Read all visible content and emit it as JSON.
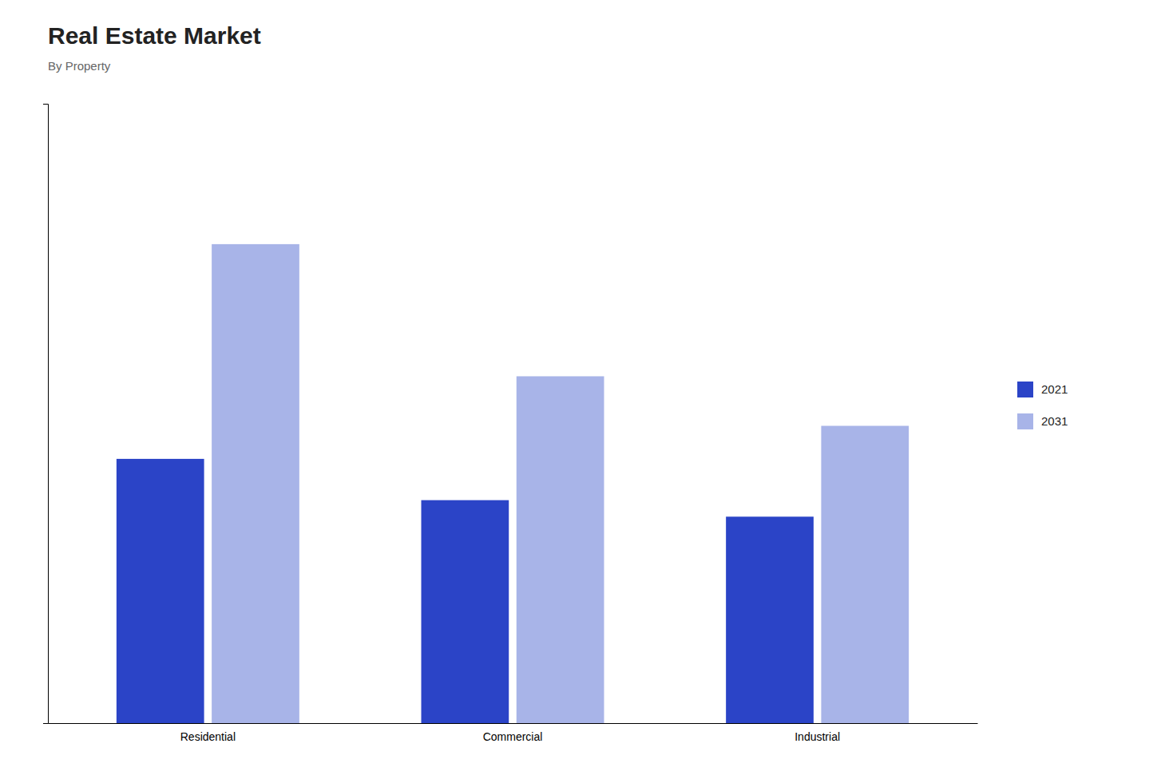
{
  "chart_data": {
    "type": "bar",
    "title": "Real Estate Market",
    "subtitle": "By Property",
    "categories": [
      "Residential",
      "Commercial",
      "Industrial"
    ],
    "series": [
      {
        "name": "2021",
        "color": "#2B44C7",
        "values": [
          3.2,
          2.7,
          2.5
        ]
      },
      {
        "name": "2031",
        "color": "#A8B4E8",
        "values": [
          5.8,
          4.2,
          3.6
        ]
      }
    ],
    "ylim": [
      0,
      7.5
    ],
    "yticks": [],
    "grid": false,
    "legend": "right",
    "tick_labels": "x"
  }
}
